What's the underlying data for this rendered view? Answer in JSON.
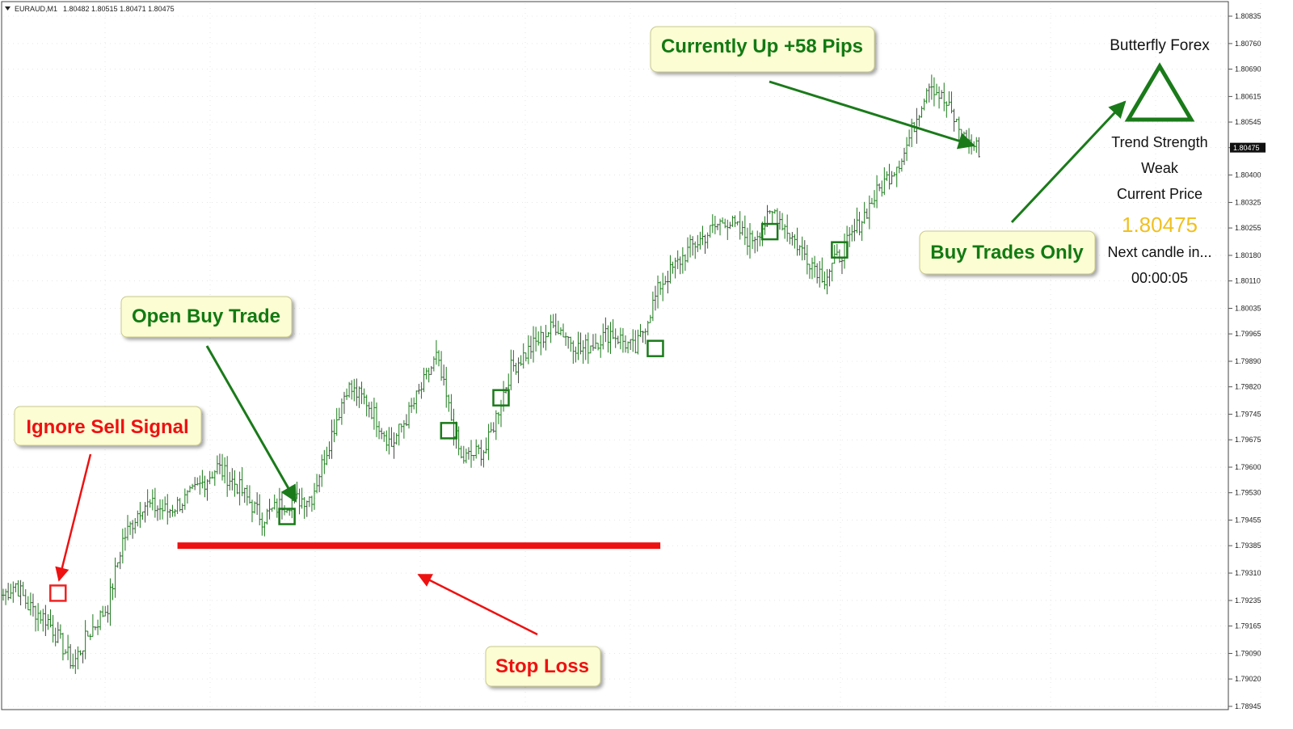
{
  "header": {
    "symbol": "EURAUD,M1",
    "ohlc": "1.80482 1.80515 1.80471 1.80475"
  },
  "panel": {
    "title": "Butterfly Forex",
    "trend_label": "Trend Strength",
    "trend_value": "Weak",
    "price_label": "Current Price",
    "price_value": "1.80475",
    "next_label": "Next candle in...",
    "timer": "00:00:05"
  },
  "annotations": {
    "ignore_sell": "Ignore Sell Signal",
    "open_buy": "Open Buy Trade",
    "stop_loss": "Stop Loss",
    "currently_up": "Currently Up +58 Pips",
    "buy_only": "Buy Trades Only"
  },
  "colors": {
    "bar": "#1a7a1a",
    "bar_dark": "#444444",
    "green_text": "#127a12",
    "red_text": "#ee1111",
    "price_yellow": "#f0c020",
    "callout_bg": "#fdfdd4",
    "stop_line": "#ee1111",
    "signal_green": "#1a7a1a",
    "signal_red": "#ee2222",
    "axis": "#555555",
    "grid": "#d8d8d8"
  },
  "chart_data": {
    "type": "ohlc",
    "symbol": "EURAUD",
    "timeframe": "M1",
    "current_price": 1.80475,
    "ylim": [
      1.78945,
      1.80835
    ],
    "y_ticks": [
      "1.80835",
      "1.80760",
      "1.80690",
      "1.80615",
      "1.80545",
      "1.80475",
      "1.80400",
      "1.80325",
      "1.80255",
      "1.80180",
      "1.80110",
      "1.80035",
      "1.79965",
      "1.79890",
      "1.79820",
      "1.79745",
      "1.79675",
      "1.79600",
      "1.79530",
      "1.79455",
      "1.79385",
      "1.79310",
      "1.79235",
      "1.79165",
      "1.79090",
      "1.79020",
      "1.78945"
    ],
    "price_keypoints": [
      {
        "i": 0,
        "p": 1.7925
      },
      {
        "i": 5,
        "p": 1.7928
      },
      {
        "i": 10,
        "p": 1.7922
      },
      {
        "i": 18,
        "p": 1.7918
      },
      {
        "i": 28,
        "p": 1.7906
      },
      {
        "i": 34,
        "p": 1.7914
      },
      {
        "i": 42,
        "p": 1.7922
      },
      {
        "i": 48,
        "p": 1.794
      },
      {
        "i": 56,
        "p": 1.795
      },
      {
        "i": 66,
        "p": 1.7948
      },
      {
        "i": 75,
        "p": 1.7952
      },
      {
        "i": 86,
        "p": 1.796
      },
      {
        "i": 94,
        "p": 1.7955
      },
      {
        "i": 104,
        "p": 1.7946
      },
      {
        "i": 112,
        "p": 1.795
      },
      {
        "i": 124,
        "p": 1.7952
      },
      {
        "i": 138,
        "p": 1.7982
      },
      {
        "i": 146,
        "p": 1.7978
      },
      {
        "i": 156,
        "p": 1.7966
      },
      {
        "i": 164,
        "p": 1.7976
      },
      {
        "i": 174,
        "p": 1.799
      },
      {
        "i": 184,
        "p": 1.7962
      },
      {
        "i": 194,
        "p": 1.7965
      },
      {
        "i": 204,
        "p": 1.7987
      },
      {
        "i": 214,
        "p": 1.7994
      },
      {
        "i": 222,
        "p": 1.7999
      },
      {
        "i": 232,
        "p": 1.7992
      },
      {
        "i": 244,
        "p": 1.7997
      },
      {
        "i": 254,
        "p": 1.7992
      },
      {
        "i": 264,
        "p": 1.801
      },
      {
        "i": 276,
        "p": 1.802
      },
      {
        "i": 290,
        "p": 1.8028
      },
      {
        "i": 300,
        "p": 1.8022
      },
      {
        "i": 310,
        "p": 1.803
      },
      {
        "i": 320,
        "p": 1.802
      },
      {
        "i": 330,
        "p": 1.8012
      },
      {
        "i": 340,
        "p": 1.8022
      },
      {
        "i": 350,
        "p": 1.8034
      },
      {
        "i": 362,
        "p": 1.8046
      },
      {
        "i": 372,
        "p": 1.8066
      },
      {
        "i": 380,
        "p": 1.8058
      },
      {
        "i": 386,
        "p": 1.805
      },
      {
        "i": 392,
        "p": 1.8047
      }
    ],
    "signals": [
      {
        "type": "sell",
        "index": 22,
        "price": 1.79255
      },
      {
        "type": "buy",
        "index": 114,
        "price": 1.79465
      },
      {
        "type": "buy",
        "index": 179,
        "price": 1.797
      },
      {
        "type": "buy",
        "index": 200,
        "price": 1.7979
      },
      {
        "type": "buy",
        "index": 262,
        "price": 1.79925
      },
      {
        "type": "buy",
        "index": 308,
        "price": 1.80245
      },
      {
        "type": "buy",
        "index": 336,
        "price": 1.80195
      }
    ],
    "stop_loss": {
      "price": 1.79385,
      "from_index": 70,
      "to_index": 264
    }
  }
}
